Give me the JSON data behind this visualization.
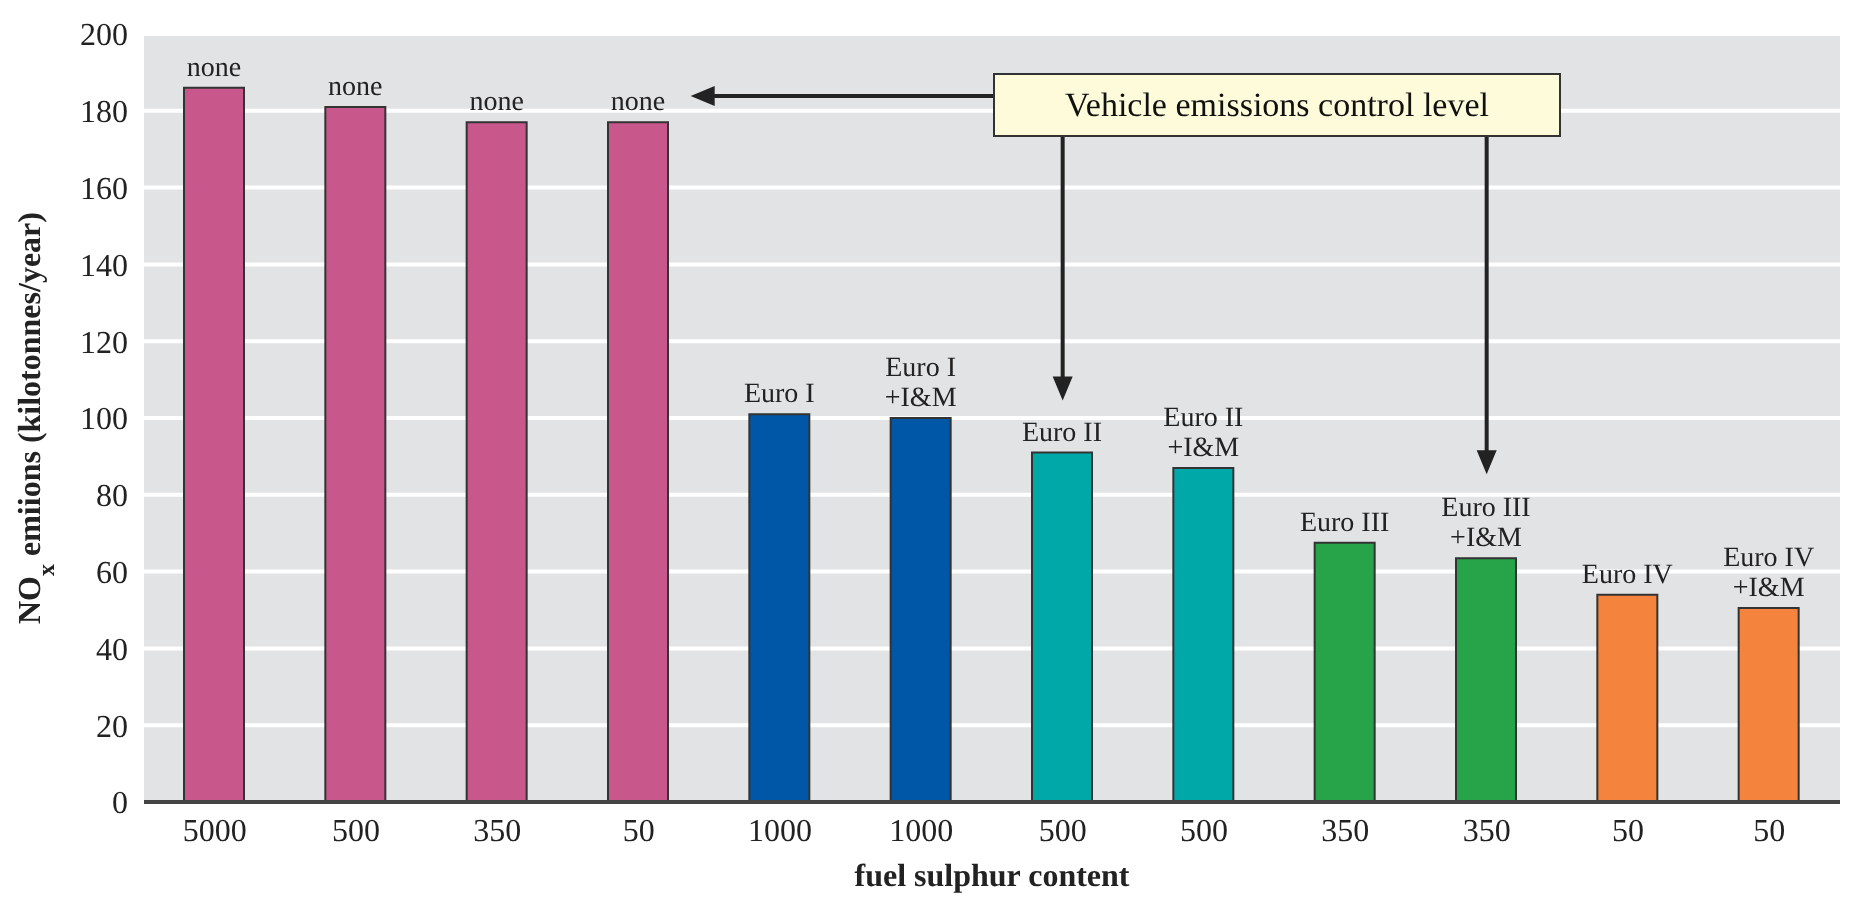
{
  "chart_data": {
    "type": "bar",
    "xlabel": "fuel sulphur content",
    "ylabel": "NO$_{x}$ emiions (kilotonnes/year)",
    "categories": [
      "5000",
      "500",
      "350",
      "50",
      "1000",
      "1000",
      "500",
      "500",
      "350",
      "350",
      "50",
      "50"
    ],
    "values": [
      186,
      181,
      177,
      177,
      101,
      100,
      91,
      87,
      67.5,
      63.5,
      54,
      50.5
    ],
    "colors": [
      "#c8578c",
      "#c8578c",
      "#c8578c",
      "#c8578c",
      "#0057a8",
      "#0057a8",
      "#00a8a8",
      "#00a8a8",
      "#27a34a",
      "#27a34a",
      "#f4833d",
      "#f4833d"
    ],
    "value_labels": [
      "none",
      "none",
      "none",
      "none",
      "Euro I",
      "Euro I\n+I&M",
      "Euro II",
      "Euro II\n+I&M",
      "Euro III",
      "Euro III\n+I&M",
      "Euro IV",
      "Euro IV\n+I&M"
    ],
    "ylim": [
      0,
      200
    ],
    "yticks": [
      0,
      20,
      40,
      60,
      80,
      100,
      120,
      140,
      160,
      180,
      200
    ],
    "grid": "y",
    "annotations": [
      "Vehicle emissions control level"
    ]
  }
}
